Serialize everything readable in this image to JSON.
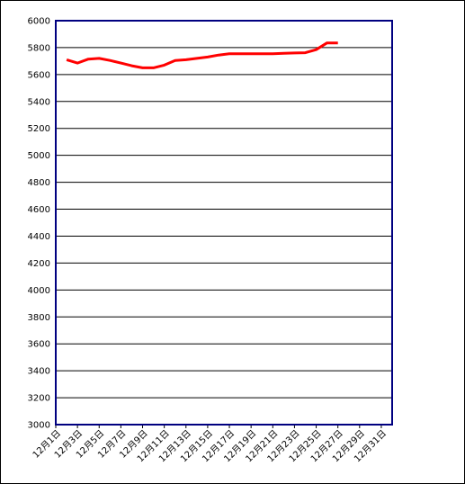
{
  "chart_data": {
    "type": "line",
    "title": "",
    "xlabel": "",
    "ylabel": "",
    "ylim": [
      3000,
      6000
    ],
    "y_ticks": [
      3000,
      3200,
      3400,
      3600,
      3800,
      4000,
      4200,
      4400,
      4600,
      4800,
      5000,
      5200,
      5400,
      5600,
      5800,
      6000
    ],
    "x_range": [
      1,
      32
    ],
    "x_ticks": [
      1,
      3,
      5,
      7,
      9,
      11,
      13,
      15,
      17,
      19,
      21,
      23,
      25,
      27,
      29,
      31
    ],
    "x_tick_labels": [
      "12月1日",
      "12月3日",
      "12月5日",
      "12月7日",
      "12月9日",
      "12月11日",
      "12月13日",
      "12月15日",
      "12月17日",
      "12月19日",
      "12月21日",
      "12月23日",
      "12月25日",
      "12月27日",
      "12月29日",
      "12月31日"
    ],
    "grid": true,
    "legend": "none",
    "colors": {
      "line": "#ff0000",
      "plot_border": "#000080",
      "grid": "#000000"
    },
    "series": [
      {
        "x": [
          2,
          3,
          4,
          5,
          6,
          7,
          8,
          9,
          10,
          11,
          12,
          13,
          14,
          15,
          16,
          17,
          18,
          19,
          20,
          21,
          22,
          23,
          24,
          25,
          26,
          27
        ],
        "values": [
          5710,
          5685,
          5715,
          5720,
          5705,
          5685,
          5665,
          5650,
          5650,
          5670,
          5705,
          5710,
          5720,
          5730,
          5745,
          5755,
          5755,
          5755,
          5755,
          5755,
          5758,
          5760,
          5762,
          5785,
          5835,
          5835
        ]
      }
    ]
  }
}
